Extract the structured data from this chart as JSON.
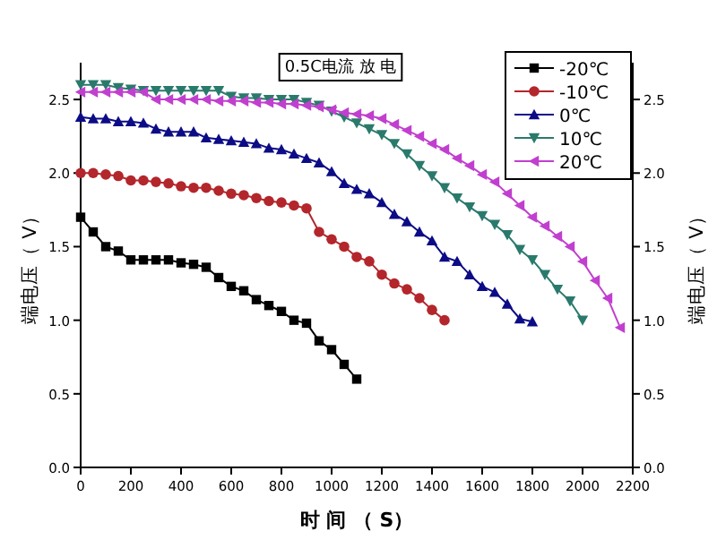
{
  "chart_data": {
    "type": "line",
    "title": "0.5C电流 放 电",
    "xlabel": "时 间 （ S）",
    "ylabel": "端电压（ V）",
    "y2label": "端电压（ V）",
    "xlim": [
      0,
      2200
    ],
    "xticks": [
      0,
      200,
      400,
      600,
      800,
      1000,
      1200,
      1400,
      1600,
      1800,
      2000,
      2200
    ],
    "ylim": [
      0,
      2.75
    ],
    "yticks": [
      {
        "value": 0,
        "label": "0.0"
      },
      0.5,
      {
        "value": 1,
        "label": "1.0"
      },
      1.5,
      {
        "value": 2,
        "label": "2.0"
      },
      2.5
    ],
    "y2lim": [
      0,
      2.75
    ],
    "y2ticks": [
      {
        "value": 0,
        "label": "0.0"
      },
      0.5,
      {
        "value": 1,
        "label": "1.0"
      },
      1.5,
      {
        "value": 2,
        "label": "2.0"
      },
      2.5
    ],
    "grid": false,
    "legend": "top right",
    "line_style": "solid",
    "series": [
      {
        "name": "-20℃",
        "color": "#000000",
        "marker": "square",
        "x": [
          0,
          50,
          100,
          150,
          200,
          250,
          300,
          350,
          400,
          450,
          500,
          550,
          600,
          650,
          700,
          750,
          800,
          850,
          900,
          950,
          1000,
          1050,
          1100
        ],
        "values": [
          1.7,
          1.6,
          1.5,
          1.47,
          1.41,
          1.41,
          1.41,
          1.41,
          1.39,
          1.38,
          1.36,
          1.29,
          1.23,
          1.2,
          1.14,
          1.1,
          1.06,
          1.0,
          0.98,
          0.86,
          0.8,
          0.7,
          0.6
        ]
      },
      {
        "name": "-10℃",
        "color": "#b3262b",
        "marker": "circle",
        "x": [
          0,
          50,
          100,
          150,
          200,
          250,
          300,
          350,
          400,
          450,
          500,
          550,
          600,
          650,
          700,
          750,
          800,
          850,
          900,
          950,
          1000,
          1050,
          1100,
          1150,
          1200,
          1250,
          1300,
          1350,
          1400,
          1450
        ],
        "values": [
          2.0,
          2.0,
          1.99,
          1.98,
          1.95,
          1.95,
          1.94,
          1.93,
          1.91,
          1.9,
          1.9,
          1.88,
          1.86,
          1.85,
          1.83,
          1.81,
          1.8,
          1.78,
          1.76,
          1.6,
          1.55,
          1.5,
          1.43,
          1.4,
          1.31,
          1.25,
          1.21,
          1.15,
          1.07,
          1.0
        ]
      },
      {
        "name": "0℃",
        "color": "#0c0c86",
        "marker": "triangle",
        "x": [
          0,
          50,
          100,
          150,
          200,
          250,
          300,
          350,
          400,
          450,
          500,
          550,
          600,
          650,
          700,
          750,
          800,
          850,
          900,
          950,
          1000,
          1050,
          1100,
          1150,
          1200,
          1250,
          1300,
          1350,
          1400,
          1450,
          1500,
          1550,
          1600,
          1650,
          1700,
          1750,
          1800
        ],
        "values": [
          2.38,
          2.37,
          2.37,
          2.35,
          2.35,
          2.34,
          2.3,
          2.28,
          2.28,
          2.28,
          2.24,
          2.23,
          2.22,
          2.21,
          2.2,
          2.17,
          2.16,
          2.13,
          2.1,
          2.07,
          2.01,
          1.93,
          1.89,
          1.86,
          1.8,
          1.72,
          1.67,
          1.6,
          1.54,
          1.43,
          1.4,
          1.31,
          1.23,
          1.19,
          1.11,
          1.01,
          0.99
        ]
      },
      {
        "name": "10℃",
        "color": "#2a7a6c",
        "marker": "triangle-down",
        "x": [
          0,
          50,
          100,
          150,
          200,
          250,
          300,
          350,
          400,
          450,
          500,
          550,
          600,
          650,
          700,
          750,
          800,
          850,
          900,
          950,
          1000,
          1050,
          1100,
          1150,
          1200,
          1250,
          1300,
          1350,
          1400,
          1450,
          1500,
          1550,
          1600,
          1650,
          1700,
          1750,
          1800,
          1850,
          1900,
          1950,
          2000
        ],
        "values": [
          2.6,
          2.6,
          2.6,
          2.58,
          2.57,
          2.56,
          2.56,
          2.56,
          2.56,
          2.56,
          2.56,
          2.56,
          2.52,
          2.51,
          2.51,
          2.5,
          2.5,
          2.5,
          2.48,
          2.46,
          2.42,
          2.38,
          2.34,
          2.3,
          2.26,
          2.2,
          2.13,
          2.05,
          1.98,
          1.9,
          1.83,
          1.77,
          1.71,
          1.65,
          1.58,
          1.48,
          1.41,
          1.31,
          1.21,
          1.13,
          1.0
        ]
      },
      {
        "name": "20℃",
        "color": "#c13fcf",
        "marker": "triangle-left",
        "x": [
          0,
          50,
          100,
          150,
          200,
          250,
          300,
          350,
          400,
          450,
          500,
          550,
          600,
          650,
          700,
          750,
          800,
          850,
          900,
          950,
          1000,
          1050,
          1100,
          1150,
          1200,
          1250,
          1300,
          1350,
          1400,
          1450,
          1500,
          1550,
          1600,
          1650,
          1700,
          1750,
          1800,
          1850,
          1900,
          1950,
          2000,
          2050,
          2100,
          2150
        ],
        "values": [
          2.55,
          2.55,
          2.55,
          2.55,
          2.55,
          2.55,
          2.5,
          2.5,
          2.5,
          2.5,
          2.5,
          2.49,
          2.49,
          2.49,
          2.48,
          2.48,
          2.47,
          2.47,
          2.46,
          2.45,
          2.43,
          2.41,
          2.4,
          2.39,
          2.37,
          2.33,
          2.29,
          2.25,
          2.2,
          2.16,
          2.1,
          2.05,
          1.99,
          1.94,
          1.86,
          1.78,
          1.7,
          1.64,
          1.57,
          1.5,
          1.4,
          1.27,
          1.15,
          0.95
        ]
      }
    ]
  }
}
